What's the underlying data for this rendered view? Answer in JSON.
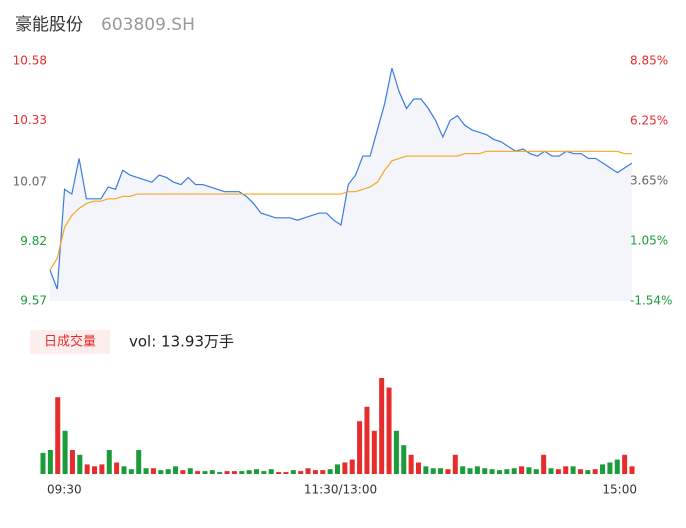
{
  "header": {
    "name": "豪能股份",
    "code": "603809.SH"
  },
  "chart_data": [
    {
      "type": "line",
      "x": [
        0,
        3,
        6,
        9,
        12,
        15,
        18,
        21,
        24,
        27,
        30,
        33,
        36,
        39,
        42,
        45,
        48,
        51,
        54,
        57,
        60,
        63,
        66,
        69,
        72,
        75,
        78,
        81,
        84,
        87,
        90,
        93,
        96,
        99,
        102,
        105,
        108,
        111,
        114,
        117,
        120,
        123,
        126,
        129,
        132,
        135,
        138,
        141,
        144,
        147,
        150,
        153,
        156,
        159,
        162,
        165,
        168,
        171,
        174,
        177,
        180,
        183,
        186,
        189,
        192,
        195,
        198,
        201,
        204,
        207,
        210,
        213,
        216,
        219,
        222,
        225,
        228,
        231,
        234,
        237,
        240
      ],
      "xlim": [
        0,
        240
      ],
      "ylim": [
        9.57,
        10.58
      ],
      "yticks": [
        9.57,
        9.82,
        10.07,
        10.33,
        10.58
      ],
      "ytick_colors": [
        "#1a9c3a",
        "#1a9c3a",
        "#666666",
        "#e52d2d",
        "#e52d2d"
      ],
      "y2lim": [
        -1.54,
        8.85
      ],
      "y2ticks": [
        {
          "value": -1.54,
          "label": "-1.54%"
        },
        {
          "value": 1.05,
          "label": "1.05%"
        },
        {
          "value": 3.65,
          "label": "3.65%"
        },
        {
          "value": 6.25,
          "label": "6.25%"
        },
        {
          "value": 8.85,
          "label": "8.85%"
        }
      ],
      "y2tick_colors": [
        "#1a9c3a",
        "#1a9c3a",
        "#666666",
        "#e52d2d",
        "#e52d2d"
      ],
      "series": [
        {
          "color": "#3b7be0",
          "fill": "#f3f5fb",
          "values": [
            9.7,
            9.62,
            10.04,
            10.02,
            10.17,
            10.0,
            10.0,
            10.0,
            10.05,
            10.04,
            10.12,
            10.1,
            10.09,
            10.08,
            10.07,
            10.1,
            10.09,
            10.07,
            10.06,
            10.09,
            10.06,
            10.06,
            10.05,
            10.04,
            10.03,
            10.03,
            10.03,
            10.01,
            9.98,
            9.94,
            9.93,
            9.92,
            9.92,
            9.92,
            9.91,
            9.92,
            9.93,
            9.94,
            9.94,
            9.91,
            9.89,
            10.06,
            10.1,
            10.18,
            10.18,
            10.29,
            10.4,
            10.55,
            10.45,
            10.38,
            10.42,
            10.42,
            10.38,
            10.33,
            10.26,
            10.33,
            10.35,
            10.31,
            10.29,
            10.28,
            10.27,
            10.25,
            10.24,
            10.22,
            10.2,
            10.21,
            10.19,
            10.18,
            10.2,
            10.18,
            10.18,
            10.2,
            10.19,
            10.19,
            10.17,
            10.17,
            10.15,
            10.13,
            10.11,
            10.13,
            10.15
          ]
        },
        {
          "color": "#f5a623",
          "values": [
            9.7,
            9.75,
            9.88,
            9.93,
            9.96,
            9.98,
            9.99,
            9.99,
            10.0,
            10.0,
            10.01,
            10.01,
            10.02,
            10.02,
            10.02,
            10.02,
            10.02,
            10.02,
            10.02,
            10.02,
            10.02,
            10.02,
            10.02,
            10.02,
            10.02,
            10.02,
            10.02,
            10.02,
            10.02,
            10.02,
            10.02,
            10.02,
            10.02,
            10.02,
            10.02,
            10.02,
            10.02,
            10.02,
            10.02,
            10.02,
            10.02,
            10.03,
            10.03,
            10.04,
            10.05,
            10.07,
            10.12,
            10.16,
            10.17,
            10.18,
            10.18,
            10.18,
            10.18,
            10.18,
            10.18,
            10.18,
            10.18,
            10.19,
            10.19,
            10.19,
            10.2,
            10.2,
            10.2,
            10.2,
            10.2,
            10.2,
            10.2,
            10.2,
            10.2,
            10.2,
            10.2,
            10.2,
            10.2,
            10.2,
            10.2,
            10.2,
            10.2,
            10.2,
            10.2,
            10.19,
            10.19
          ]
        }
      ]
    },
    {
      "type": "bar",
      "label": "日成交量",
      "vol_text": "vol: 13.93万手",
      "xlim": [
        0,
        240
      ],
      "xticks": [
        {
          "value": 0,
          "label": "09:30"
        },
        {
          "value": 120,
          "label": "11:30/13:00"
        },
        {
          "value": 240,
          "label": "15:00"
        }
      ],
      "ylim": [
        0,
        100
      ],
      "up_color": "#e52d2d",
      "down_color": "#1a9c3a",
      "values": [
        22,
        25,
        80,
        45,
        25,
        20,
        10,
        8,
        10,
        25,
        12,
        8,
        5,
        25,
        6,
        6,
        4,
        5,
        8,
        4,
        6,
        3,
        3,
        4,
        2,
        3,
        3,
        3,
        4,
        5,
        3,
        5,
        2,
        2,
        4,
        3,
        6,
        4,
        4,
        5,
        10,
        12,
        15,
        55,
        70,
        45,
        100,
        90,
        45,
        30,
        20,
        12,
        8,
        6,
        6,
        5,
        20,
        8,
        6,
        8,
        6,
        5,
        4,
        5,
        6,
        8,
        7,
        5,
        20,
        6,
        5,
        8,
        8,
        5,
        4,
        5,
        10,
        12,
        15,
        20,
        8
      ]
    }
  ]
}
